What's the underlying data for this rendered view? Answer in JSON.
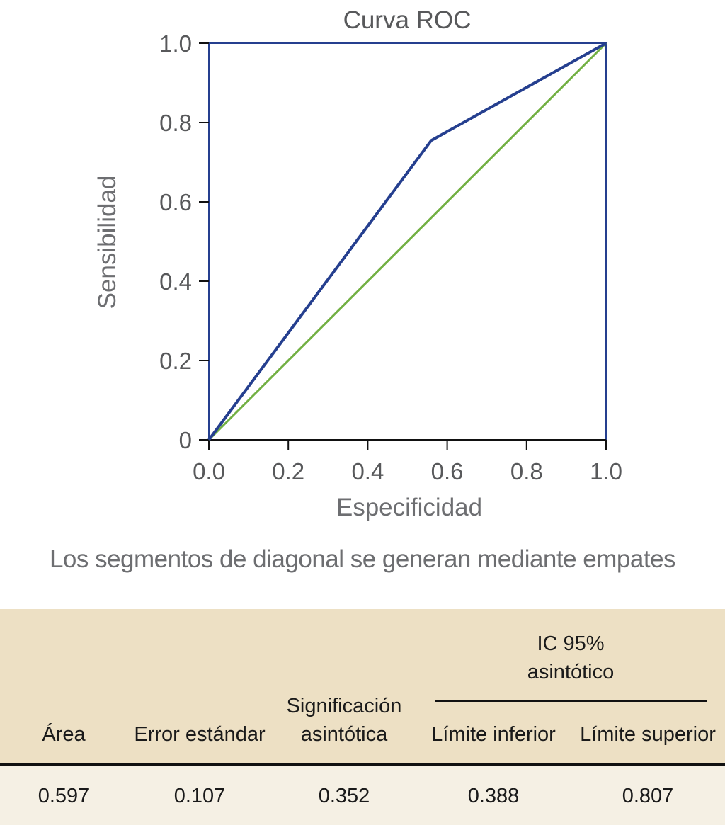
{
  "chart_data": {
    "type": "line",
    "title": "Curva ROC",
    "xlabel": "Especificidad",
    "ylabel": "Sensibilidad",
    "xlim": [
      0,
      1
    ],
    "ylim": [
      0,
      1
    ],
    "x_ticks": [
      "0.0",
      "0.2",
      "0.4",
      "0.6",
      "0.8",
      "1.0"
    ],
    "y_ticks": [
      "0",
      "0.2",
      "0.4",
      "0.6",
      "0.8",
      "1.0"
    ],
    "series": [
      {
        "color": "#253f8f",
        "x": [
          0,
          0.56,
          1
        ],
        "y": [
          0,
          0.755,
          1
        ]
      },
      {
        "color": "#72b043",
        "x": [
          0,
          1
        ],
        "y": [
          0,
          1
        ]
      }
    ],
    "frame_color": "#253f8f"
  },
  "caption": "Los segmentos de diagonal se generan mediante empates",
  "table": {
    "ci_header_line1": "IC 95%",
    "ci_header_line2": "asintótico",
    "headers": {
      "area": "Área",
      "std_error": "Error estándar",
      "significance_line1": "Significación",
      "significance_line2": "asintótica",
      "lower": "Límite inferior",
      "upper": "Límite superior"
    },
    "row": {
      "area": "0.597",
      "std_error": "0.107",
      "significance": "0.352",
      "lower": "0.388",
      "upper": "0.807"
    }
  }
}
